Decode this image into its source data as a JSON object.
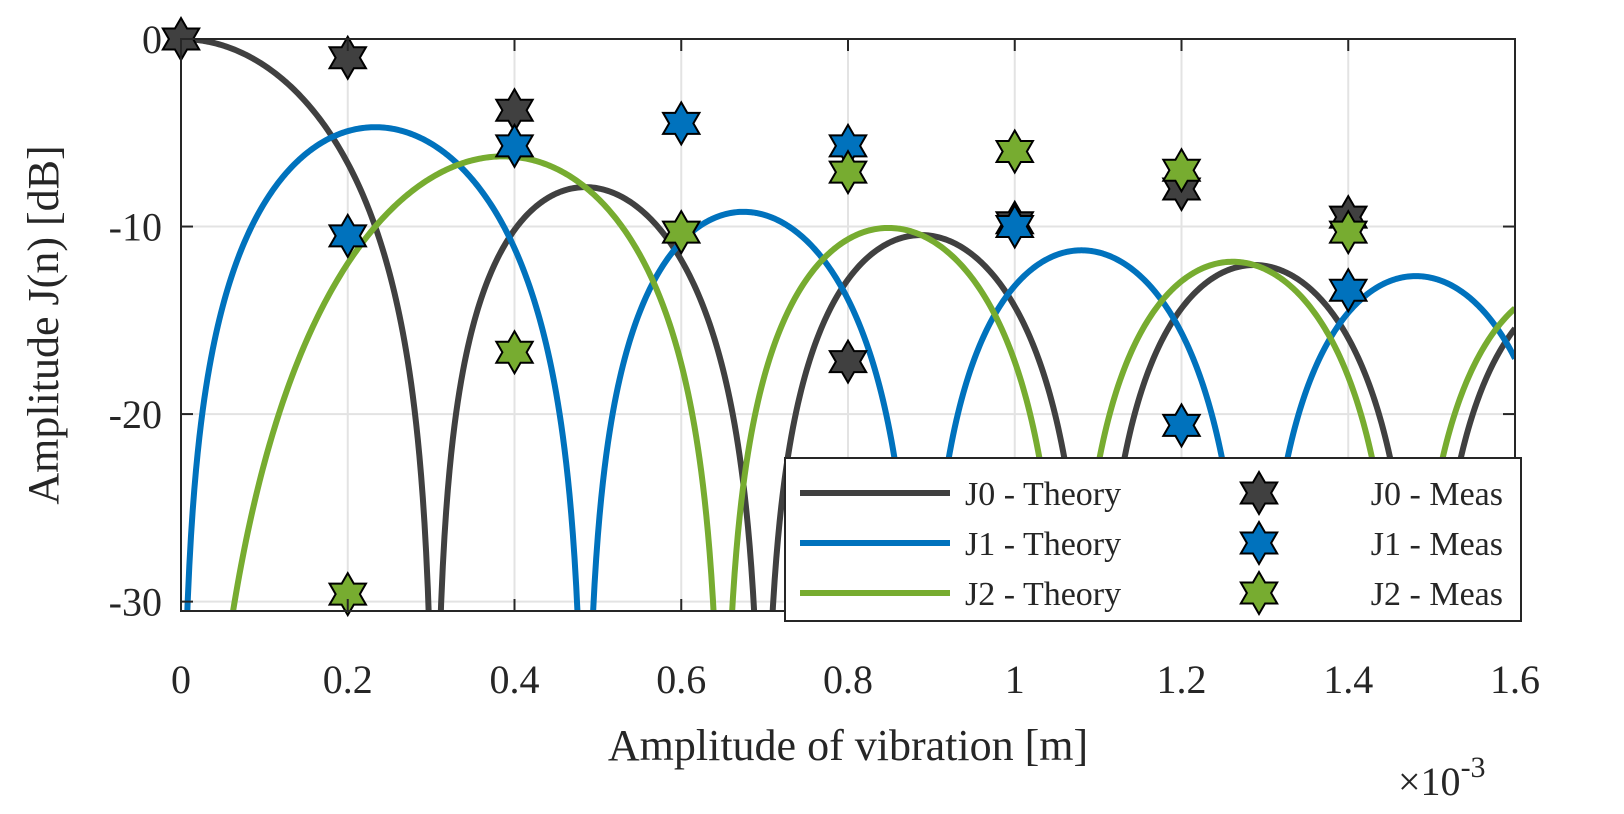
{
  "chart_data": {
    "type": "line",
    "xlabel": "Amplitude of vibration [m]",
    "ylabel": "Amplitude J(n) [dB]",
    "x_multiplier_base": "×10",
    "x_multiplier_exp": "-3",
    "xlim": [
      0,
      1.6
    ],
    "ylim": [
      -30.5,
      0
    ],
    "xticks": [
      0,
      0.2,
      0.4,
      0.6,
      0.8,
      1.0,
      1.2,
      1.4,
      1.6
    ],
    "xtick_labels": [
      "0",
      "0.2",
      "0.4",
      "0.6",
      "0.8",
      "1",
      "1.2",
      "1.4",
      "1.6"
    ],
    "yticks": [
      0,
      -10,
      -20,
      -30
    ],
    "ytick_labels": [
      "0",
      "-10",
      "-20",
      "-30"
    ],
    "grid": true,
    "legend_position": "bottom-right",
    "theory_model": "20*log10(|J_n(4*pi*x/lambda)|)",
    "theory_lambda_mm": 1.59,
    "series": [
      {
        "name": "J0 - Theory",
        "kind": "line",
        "order": 0,
        "color": "#404040"
      },
      {
        "name": "J1 - Theory",
        "kind": "line",
        "order": 1,
        "color": "#0072BD"
      },
      {
        "name": "J2 - Theory",
        "kind": "line",
        "order": 2,
        "color": "#77AC30"
      },
      {
        "name": "J0 - Meas",
        "kind": "marker",
        "color": "#404040",
        "x": [
          0,
          0.2,
          0.4,
          0.8,
          1.0,
          1.2,
          1.4
        ],
        "y": [
          0,
          -1,
          -3.8,
          -17.2,
          -9.8,
          -8,
          -9.5
        ]
      },
      {
        "name": "J1 - Meas",
        "kind": "marker",
        "color": "#0072BD",
        "x": [
          0.2,
          0.4,
          0.6,
          0.8,
          1.0,
          1.2,
          1.4
        ],
        "y": [
          -10.5,
          -5.7,
          -4.5,
          -5.7,
          -10,
          -20.6,
          -13.4
        ]
      },
      {
        "name": "J2 - Meas",
        "kind": "marker",
        "color": "#77AC30",
        "x": [
          0.2,
          0.4,
          0.6,
          0.8,
          1.0,
          1.2,
          1.4
        ],
        "y": [
          -29.6,
          -16.7,
          -10.3,
          -7.1,
          -6,
          -7,
          -10.3
        ]
      }
    ]
  }
}
